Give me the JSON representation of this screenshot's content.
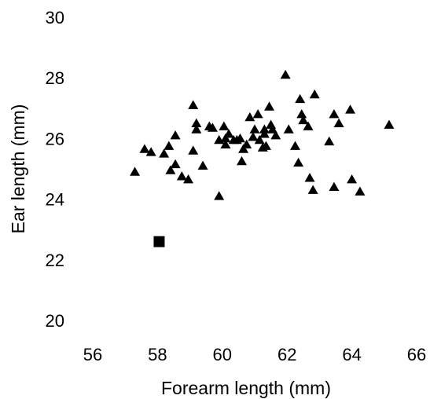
{
  "chart_data": {
    "type": "scatter",
    "title": "",
    "xlabel": "Forearm length (mm)",
    "ylabel": "Ear length (mm)",
    "xlim": [
      56,
      66
    ],
    "ylim": [
      20,
      30
    ],
    "x_ticks": [
      "56",
      "58",
      "60",
      "62",
      "64",
      "66"
    ],
    "y_ticks": [
      "20",
      "22",
      "24",
      "26",
      "28",
      "30"
    ],
    "grid": false,
    "legend": "none",
    "series": [
      {
        "marker": "triangle",
        "color": "#000000",
        "points": [
          [
            57.3,
            24.9
          ],
          [
            57.6,
            25.65
          ],
          [
            57.8,
            25.55
          ],
          [
            58.2,
            25.5
          ],
          [
            58.35,
            25.75
          ],
          [
            58.4,
            24.95
          ],
          [
            58.55,
            26.1
          ],
          [
            58.55,
            25.15
          ],
          [
            58.75,
            24.75
          ],
          [
            58.95,
            24.65
          ],
          [
            59.1,
            25.6
          ],
          [
            59.1,
            27.1
          ],
          [
            59.2,
            26.5
          ],
          [
            59.2,
            26.3
          ],
          [
            59.4,
            25.1
          ],
          [
            59.6,
            26.4
          ],
          [
            59.7,
            26.35
          ],
          [
            59.9,
            24.1
          ],
          [
            59.9,
            25.95
          ],
          [
            60.05,
            26.4
          ],
          [
            60.1,
            26.0
          ],
          [
            60.1,
            25.8
          ],
          [
            60.2,
            26.15
          ],
          [
            60.35,
            25.95
          ],
          [
            60.45,
            25.95
          ],
          [
            60.55,
            26.0
          ],
          [
            60.6,
            25.25
          ],
          [
            60.65,
            25.65
          ],
          [
            60.75,
            25.8
          ],
          [
            60.85,
            26.7
          ],
          [
            60.95,
            26.05
          ],
          [
            61.0,
            26.3
          ],
          [
            61.1,
            26.8
          ],
          [
            61.15,
            25.95
          ],
          [
            61.25,
            25.7
          ],
          [
            61.3,
            26.15
          ],
          [
            61.3,
            26.3
          ],
          [
            61.35,
            25.75
          ],
          [
            61.45,
            27.05
          ],
          [
            61.5,
            26.45
          ],
          [
            61.55,
            26.3
          ],
          [
            61.65,
            26.1
          ],
          [
            61.95,
            28.1
          ],
          [
            62.05,
            26.3
          ],
          [
            62.25,
            25.75
          ],
          [
            62.35,
            25.2
          ],
          [
            62.4,
            27.3
          ],
          [
            62.45,
            26.8
          ],
          [
            62.5,
            26.6
          ],
          [
            62.65,
            26.4
          ],
          [
            62.7,
            24.7
          ],
          [
            62.8,
            24.3
          ],
          [
            62.85,
            27.45
          ],
          [
            63.3,
            25.9
          ],
          [
            63.45,
            26.8
          ],
          [
            63.45,
            24.4
          ],
          [
            63.6,
            26.5
          ],
          [
            63.95,
            26.95
          ],
          [
            64.0,
            24.65
          ],
          [
            64.25,
            24.25
          ],
          [
            65.15,
            26.45
          ]
        ]
      },
      {
        "marker": "square",
        "color": "#000000",
        "points": [
          [
            58.05,
            22.6
          ]
        ]
      }
    ]
  }
}
